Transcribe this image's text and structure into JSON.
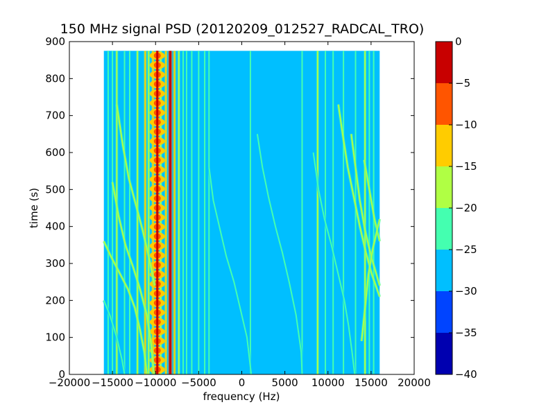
{
  "chart_data": {
    "type": "heatmap",
    "title": "150 MHz signal PSD (20120209_012527_RADCAL_TRO)",
    "xlabel": "frequency (Hz)",
    "ylabel": "time (s)",
    "xlim": [
      -20000,
      20000
    ],
    "ylim": [
      0,
      900
    ],
    "x_ticks": [
      -20000,
      -15000,
      -10000,
      -5000,
      0,
      5000,
      10000,
      15000,
      20000
    ],
    "x_tick_labels": [
      "−20000",
      "−15000",
      "−10000",
      "−5000",
      "0",
      "5000",
      "10000",
      "15000",
      "20000"
    ],
    "y_ticks": [
      0,
      100,
      200,
      300,
      400,
      500,
      600,
      700,
      800,
      900
    ],
    "y_tick_labels": [
      "0",
      "100",
      "200",
      "300",
      "400",
      "500",
      "600",
      "700",
      "800",
      "900"
    ],
    "data_extent": {
      "x": [
        -16000,
        16000
      ],
      "y": [
        0,
        875
      ]
    },
    "background_level": -27.5,
    "colorbar": {
      "levels": [
        -40,
        -35,
        -30,
        -25,
        -20,
        -15,
        -10,
        -5,
        0
      ],
      "tick_labels": [
        "−40",
        "−35",
        "−30",
        "−25",
        "−20",
        "−15",
        "−10",
        "−5",
        "0"
      ],
      "colors": [
        "#0000b0",
        "#0044ff",
        "#00bfff",
        "#44ffb0",
        "#b0ff44",
        "#ffcc00",
        "#ff5500",
        "#c80000"
      ]
    },
    "vertical_lines": [
      {
        "x": -15500,
        "level": -22.5
      },
      {
        "x": -15000,
        "level": -22.5
      },
      {
        "x": -14500,
        "level": -17.5
      },
      {
        "x": -13600,
        "level": -22.5
      },
      {
        "x": -13000,
        "level": -22.5
      },
      {
        "x": -12100,
        "level": -17.5
      },
      {
        "x": -11200,
        "level": -12.5
      },
      {
        "x": -10800,
        "level": -17.5
      },
      {
        "x": -10300,
        "level": -12.5
      },
      {
        "x": -9800,
        "level": -2.5
      },
      {
        "x": -9400,
        "level": -17.5
      },
      {
        "x": -8800,
        "level": -12.5
      },
      {
        "x": -8300,
        "level": -2.5
      },
      {
        "x": -7800,
        "level": -12.5
      },
      {
        "x": -7300,
        "level": -17.5
      },
      {
        "x": -6800,
        "level": -22.5
      },
      {
        "x": -6400,
        "level": -22.5
      },
      {
        "x": -5800,
        "level": -22.5
      },
      {
        "x": -5000,
        "level": -22.5
      },
      {
        "x": -4300,
        "level": -22.5
      },
      {
        "x": -3800,
        "level": -22.5
      },
      {
        "x": 1000,
        "level": -22.5
      },
      {
        "x": 7000,
        "level": -22.5
      },
      {
        "x": 8800,
        "level": -17.5
      },
      {
        "x": 9700,
        "level": -22.5
      },
      {
        "x": 10600,
        "level": -22.5
      },
      {
        "x": 11800,
        "level": -22.5
      },
      {
        "x": 13200,
        "level": -22.5
      },
      {
        "x": 14300,
        "level": -17.5
      },
      {
        "x": 14800,
        "level": -22.5
      },
      {
        "x": 15300,
        "level": -22.5
      }
    ],
    "doppler_curves": [
      {
        "level": -17.5,
        "points": [
          [
            -16000,
            360
          ],
          [
            -15200,
            320
          ],
          [
            -14300,
            280
          ],
          [
            -13200,
            230
          ],
          [
            -12400,
            180
          ],
          [
            -11800,
            120
          ],
          [
            -11300,
            60
          ],
          [
            -11000,
            0
          ]
        ]
      },
      {
        "level": -17.5,
        "points": [
          [
            -15000,
            520
          ],
          [
            -14300,
            430
          ],
          [
            -13500,
            350
          ],
          [
            -12600,
            290
          ],
          [
            -11800,
            230
          ],
          [
            -11000,
            160
          ],
          [
            -10500,
            80
          ],
          [
            -10200,
            0
          ]
        ]
      },
      {
        "level": -17.5,
        "points": [
          [
            -14500,
            730
          ],
          [
            -13800,
            620
          ],
          [
            -13100,
            530
          ],
          [
            -12300,
            460
          ],
          [
            -11500,
            390
          ],
          [
            -10800,
            320
          ],
          [
            -10100,
            240
          ]
        ]
      },
      {
        "level": -22.5,
        "points": [
          [
            -16000,
            200
          ],
          [
            -15300,
            160
          ],
          [
            -14500,
            100
          ],
          [
            -13900,
            40
          ],
          [
            -13600,
            0
          ]
        ]
      },
      {
        "level": -22.5,
        "points": [
          [
            -3800,
            560
          ],
          [
            -3300,
            470
          ],
          [
            -2600,
            400
          ],
          [
            -1800,
            320
          ],
          [
            -900,
            250
          ],
          [
            -100,
            170
          ],
          [
            600,
            100
          ],
          [
            1100,
            0
          ]
        ]
      },
      {
        "level": -22.5,
        "points": [
          [
            1800,
            650
          ],
          [
            2400,
            560
          ],
          [
            3100,
            480
          ],
          [
            3900,
            400
          ],
          [
            4700,
            330
          ],
          [
            5500,
            250
          ],
          [
            6300,
            160
          ],
          [
            6900,
            60
          ],
          [
            7000,
            0
          ]
        ]
      },
      {
        "level": -22.5,
        "points": [
          [
            8300,
            600
          ],
          [
            8900,
            500
          ],
          [
            9600,
            420
          ],
          [
            10400,
            350
          ],
          [
            11200,
            270
          ],
          [
            11900,
            200
          ],
          [
            12400,
            130
          ],
          [
            12800,
            60
          ],
          [
            13100,
            0
          ]
        ]
      },
      {
        "level": -17.5,
        "points": [
          [
            11200,
            730
          ],
          [
            11700,
            650
          ],
          [
            12300,
            560
          ],
          [
            13000,
            480
          ],
          [
            13700,
            400
          ],
          [
            14400,
            330
          ],
          [
            15100,
            270
          ],
          [
            16000,
            210
          ]
        ]
      },
      {
        "level": -17.5,
        "points": [
          [
            12700,
            650
          ],
          [
            13200,
            560
          ],
          [
            13700,
            470
          ],
          [
            14300,
            390
          ],
          [
            15000,
            320
          ],
          [
            15500,
            280
          ],
          [
            16000,
            240
          ]
        ]
      },
      {
        "level": -17.5,
        "points": [
          [
            14200,
            580
          ],
          [
            14800,
            500
          ],
          [
            15400,
            420
          ],
          [
            16000,
            360
          ]
        ]
      },
      {
        "level": -17.5,
        "points": [
          [
            13900,
            90
          ],
          [
            14300,
            180
          ],
          [
            14700,
            270
          ],
          [
            15200,
            340
          ],
          [
            15800,
            400
          ],
          [
            16000,
            420
          ]
        ]
      }
    ]
  }
}
